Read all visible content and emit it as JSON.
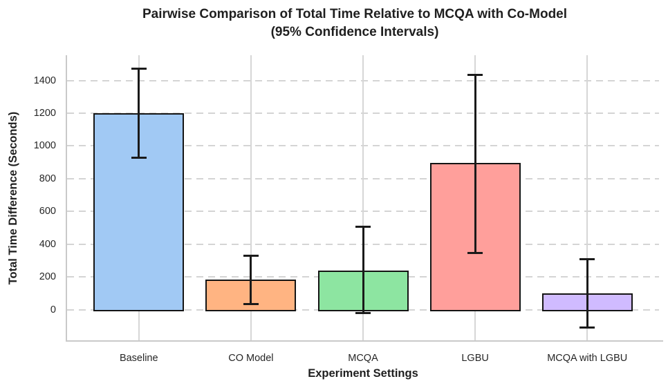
{
  "chart_data": {
    "type": "bar",
    "title": "Pairwise Comparison of Total Time Relative to MCQA with Co-Model (95% Confidence Intervals)",
    "title_lines": [
      "Pairwise Comparison of Total Time Relative to MCQA with Co-Model",
      "(95% Confidence Intervals)"
    ],
    "xlabel": "Experiment Settings",
    "ylabel": "Total Time Difference (Seconds)",
    "categories": [
      "Baseline",
      "CO Model",
      "MCQA",
      "LGBU",
      "MCQA with LGBU"
    ],
    "values": [
      1200,
      185,
      240,
      895,
      100
    ],
    "ci_low": [
      930,
      35,
      -20,
      345,
      -110
    ],
    "ci_high": [
      1470,
      330,
      505,
      1435,
      310
    ],
    "bar_colors": [
      "#a1c9f4",
      "#ffb482",
      "#8de5a1",
      "#ff9f9b",
      "#d0bbff"
    ],
    "bar_edge_color": "#141414",
    "error_color": "#1a1a1a",
    "yticks": [
      0,
      200,
      400,
      600,
      800,
      1000,
      1200,
      1400
    ],
    "ylim": [
      -187,
      1554
    ],
    "grid": {
      "horizontal": "dashed",
      "vertical": "solid",
      "color": "#d4d4d4"
    },
    "legend": "none"
  }
}
